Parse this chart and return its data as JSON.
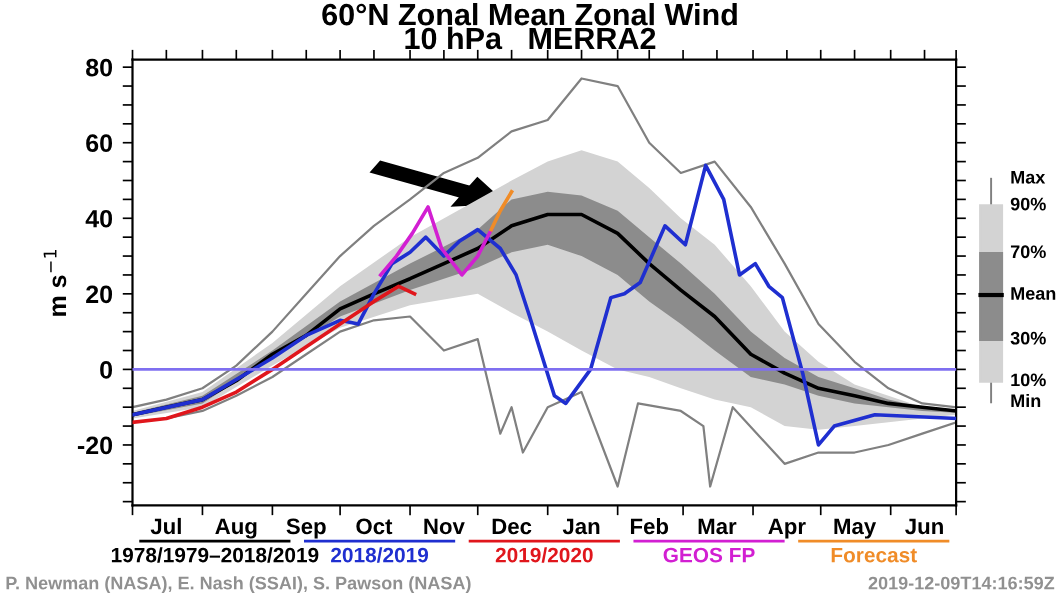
{
  "chart_data": {
    "type": "line",
    "title": "60°N Zonal Mean Zonal Wind",
    "subtitle": "10 hPa   MERRA2",
    "ylabel": "m s$^{−1}$",
    "xlim": [
      "2019-07-01",
      "2020-06-30"
    ],
    "xticks": [
      {
        "value": "2019-07-01",
        "label": null
      },
      {
        "value": "2019-07-16",
        "label": "Jul"
      },
      {
        "value": "2019-08-01",
        "label": null
      },
      {
        "value": "2019-08-16",
        "label": "Aug"
      },
      {
        "value": "2019-09-01",
        "label": null
      },
      {
        "value": "2019-09-16",
        "label": "Sep"
      },
      {
        "value": "2019-10-01",
        "label": null
      },
      {
        "value": "2019-10-16",
        "label": "Oct"
      },
      {
        "value": "2019-11-01",
        "label": null
      },
      {
        "value": "2019-11-16",
        "label": "Nov"
      },
      {
        "value": "2019-12-01",
        "label": null
      },
      {
        "value": "2019-12-16",
        "label": "Dec"
      },
      {
        "value": "2020-01-01",
        "label": null
      },
      {
        "value": "2020-01-16",
        "label": "Jan"
      },
      {
        "value": "2020-02-01",
        "label": null
      },
      {
        "value": "2020-02-15",
        "label": "Feb"
      },
      {
        "value": "2020-03-01",
        "label": null
      },
      {
        "value": "2020-03-16",
        "label": "Mar"
      },
      {
        "value": "2020-04-01",
        "label": null
      },
      {
        "value": "2020-04-16",
        "label": "Apr"
      },
      {
        "value": "2020-05-01",
        "label": null
      },
      {
        "value": "2020-05-16",
        "label": "May"
      },
      {
        "value": "2020-06-01",
        "label": null
      },
      {
        "value": "2020-06-16",
        "label": "Jun"
      },
      {
        "value": "2020-06-30",
        "label": null
      }
    ],
    "ylim": [
      -36,
      82
    ],
    "yticks": [
      {
        "value": -35,
        "label": null
      },
      {
        "value": -30,
        "label": null
      },
      {
        "value": -25,
        "label": null
      },
      -20,
      {
        "value": -15,
        "label": null
      },
      {
        "value": -10,
        "label": null
      },
      {
        "value": -5,
        "label": null
      },
      0,
      {
        "value": 5,
        "label": null
      },
      {
        "value": 10,
        "label": null
      },
      {
        "value": 15,
        "label": null
      },
      20,
      {
        "value": 25,
        "label": null
      },
      {
        "value": 30,
        "label": null
      },
      {
        "value": 35,
        "label": null
      },
      40,
      {
        "value": 45,
        "label": null
      },
      {
        "value": 50,
        "label": null
      },
      {
        "value": 55,
        "label": null
      },
      60,
      {
        "value": 65,
        "label": null
      },
      {
        "value": 70,
        "label": null
      },
      {
        "value": 75,
        "label": null
      },
      80
    ],
    "grid": false,
    "legend": "bottom",
    "ref_lines": [
      {
        "axis": "y",
        "value": 0,
        "color": "#7f6ff0"
      }
    ],
    "series": [
      {
        "color": "#d3d3d3",
        "x": [
          "2019-07-01",
          "2019-08-01",
          "2019-09-01",
          "2019-10-01",
          "2019-11-01",
          "2019-12-01",
          "2019-12-16",
          "2020-01-01",
          "2020-01-16",
          "2020-02-01",
          "2020-02-15",
          "2020-02-29",
          "2020-03-15",
          "2020-03-31",
          "2020-04-15",
          "2020-04-30",
          "2020-05-16",
          "2020-05-31",
          "2020-06-15",
          "2020-06-30"
        ],
        "values": [
          null,
          null,
          null,
          null,
          null,
          null,
          null,
          null,
          null,
          null,
          null,
          null,
          null,
          null,
          null,
          null,
          null,
          null,
          null,
          null
        ],
        "lower": [
          -13,
          -10,
          1,
          11,
          17,
          20,
          15,
          10,
          5,
          0,
          -2,
          -5,
          -8,
          -10,
          -15,
          -16,
          -15,
          -14,
          -13,
          -12
        ],
        "upper": [
          -11,
          -6,
          7,
          22,
          35,
          45,
          50,
          55,
          58,
          55,
          48,
          40,
          33,
          22,
          10,
          2,
          -4,
          -7,
          -10,
          -11
        ]
      },
      {
        "color": "#8c8c8c",
        "x": [
          "2019-07-01",
          "2019-08-01",
          "2019-09-01",
          "2019-10-01",
          "2019-11-01",
          "2019-12-01",
          "2019-12-16",
          "2020-01-01",
          "2020-01-16",
          "2020-02-01",
          "2020-02-15",
          "2020-02-29",
          "2020-03-15",
          "2020-03-31",
          "2020-04-15",
          "2020-04-30",
          "2020-05-16",
          "2020-05-31",
          "2020-06-15",
          "2020-06-30"
        ],
        "values": [
          null,
          null,
          null,
          null,
          null,
          null,
          null,
          null,
          null,
          null,
          null,
          null,
          null,
          null,
          null,
          null,
          null,
          null,
          null,
          null
        ],
        "lower": [
          -12.5,
          -9,
          3,
          14,
          21,
          27,
          31,
          33,
          30,
          25,
          18,
          12,
          5,
          -2,
          -4,
          -7,
          -9,
          -10,
          -11,
          -11.5
        ],
        "upper": [
          -11.5,
          -7,
          5,
          18,
          28,
          37,
          45,
          47,
          46,
          42,
          35,
          28,
          20,
          10,
          3,
          -2,
          -5,
          -8,
          -10,
          -11
        ]
      },
      {
        "color": "#808080",
        "x": [
          "2019-07-01",
          "2019-07-16",
          "2019-08-01",
          "2019-08-16",
          "2019-09-01",
          "2019-09-16",
          "2019-10-01",
          "2019-10-16",
          "2019-11-01",
          "2019-11-16",
          "2019-12-01",
          "2019-12-16",
          "2020-01-01",
          "2020-01-16",
          "2020-02-01",
          "2020-02-15",
          "2020-02-29",
          "2020-03-15",
          "2020-03-31",
          "2020-04-15",
          "2020-04-30",
          "2020-05-16",
          "2020-05-31",
          "2020-06-15",
          "2020-06-30"
        ],
        "values": [
          -10,
          -8,
          -5,
          1,
          10,
          20,
          30,
          38,
          45,
          52,
          56,
          63,
          66,
          77,
          75,
          60,
          52,
          55,
          43,
          28,
          12,
          2,
          -5,
          -9,
          -10
        ]
      },
      {
        "color": "#808080",
        "x": [
          "2019-07-01",
          "2019-07-16",
          "2019-08-01",
          "2019-08-16",
          "2019-09-01",
          "2019-09-16",
          "2019-10-01",
          "2019-10-16",
          "2019-11-01",
          "2019-11-16",
          "2019-12-01",
          "2019-12-11",
          "2019-12-16",
          "2019-12-21",
          "2020-01-01",
          "2020-01-16",
          "2020-02-01",
          "2020-02-10",
          "2020-02-29",
          "2020-03-10",
          "2020-03-13",
          "2020-03-23",
          "2020-04-15",
          "2020-04-30",
          "2020-05-16",
          "2020-05-31",
          "2020-06-15",
          "2020-06-30"
        ],
        "values": [
          -14,
          -13,
          -11,
          -7,
          -2,
          4,
          10,
          13,
          14,
          5,
          8,
          -17,
          -10,
          -22,
          -10,
          -6,
          -31,
          -9,
          -11,
          -15,
          -31,
          -10,
          -25,
          -22,
          -22,
          -20,
          -17,
          -14
        ]
      },
      {
        "name": "1978/1979–2018/2019",
        "color": "#000000",
        "x": [
          "2019-07-01",
          "2019-07-16",
          "2019-08-01",
          "2019-08-16",
          "2019-09-01",
          "2019-09-16",
          "2019-10-01",
          "2019-10-16",
          "2019-11-01",
          "2019-11-16",
          "2019-12-01",
          "2019-12-16",
          "2020-01-01",
          "2020-01-16",
          "2020-02-01",
          "2020-02-15",
          "2020-02-29",
          "2020-03-15",
          "2020-03-31",
          "2020-04-15",
          "2020-04-30",
          "2020-05-16",
          "2020-05-31",
          "2020-06-15",
          "2020-06-30"
        ],
        "values": [
          -12,
          -10,
          -8,
          -3,
          4,
          9,
          16,
          20,
          24,
          28,
          32,
          38,
          41,
          41,
          36,
          28,
          21,
          14,
          4,
          -1,
          -5,
          -7,
          -9,
          -10,
          -11
        ]
      },
      {
        "name": "2018/2019",
        "color": "#1f2fd0",
        "x": [
          "2019-07-01",
          "2019-08-01",
          "2019-09-01",
          "2019-09-16",
          "2019-10-01",
          "2019-10-09",
          "2019-10-16",
          "2019-10-24",
          "2019-11-01",
          "2019-11-08",
          "2019-11-16",
          "2019-11-23",
          "2019-12-01",
          "2019-12-11",
          "2019-12-18",
          "2019-12-24",
          "2020-01-04",
          "2020-01-09",
          "2020-01-20",
          "2020-01-29",
          "2020-02-04",
          "2020-02-11",
          "2020-02-22",
          "2020-03-02",
          "2020-03-11",
          "2020-03-19",
          "2020-03-26",
          "2020-04-02",
          "2020-04-08",
          "2020-04-14",
          "2020-04-23",
          "2020-04-30",
          "2020-05-07",
          "2020-05-25",
          "2020-06-30"
        ],
        "values": [
          -12,
          -8,
          3,
          9,
          13,
          12,
          20,
          28,
          31,
          35,
          30,
          34,
          37,
          32,
          25,
          14,
          -7,
          -9,
          0,
          19,
          20,
          23,
          38,
          33,
          54,
          45,
          25,
          28,
          22,
          19,
          -1,
          -20,
          -15,
          -12,
          -13
        ]
      },
      {
        "name": "2019/2020",
        "color": "#e0161c",
        "x": [
          "2019-07-01",
          "2019-07-16",
          "2019-08-01",
          "2019-08-16",
          "2019-09-01",
          "2019-09-16",
          "2019-10-01",
          "2019-10-16",
          "2019-10-27",
          "2019-11-03"
        ],
        "values": [
          -14,
          -13,
          -10,
          -6,
          0,
          6,
          12,
          18,
          22,
          20
        ]
      },
      {
        "name": "GEOS FP",
        "color": "#d21fd2",
        "x": [
          "2019-10-19",
          "2019-10-26",
          "2019-11-02",
          "2019-11-09",
          "2019-11-15",
          "2019-11-24",
          "2019-12-01",
          "2019-12-07"
        ],
        "values": [
          25,
          30,
          36,
          43,
          32,
          25,
          30,
          37
        ]
      },
      {
        "name": "Forecast",
        "color": "#f08c28",
        "x": [
          "2019-12-07",
          "2019-12-11",
          "2019-12-16"
        ],
        "values": [
          37,
          42,
          47
        ]
      }
    ],
    "annotations": [
      "Max",
      "90%",
      "70%",
      "Mean",
      "30%",
      "10%",
      "Min",
      "P. Newman (NASA), E. Nash (SSAI), S. Pawson (NASA)",
      "2019-12-09T14:16:59Z"
    ]
  }
}
